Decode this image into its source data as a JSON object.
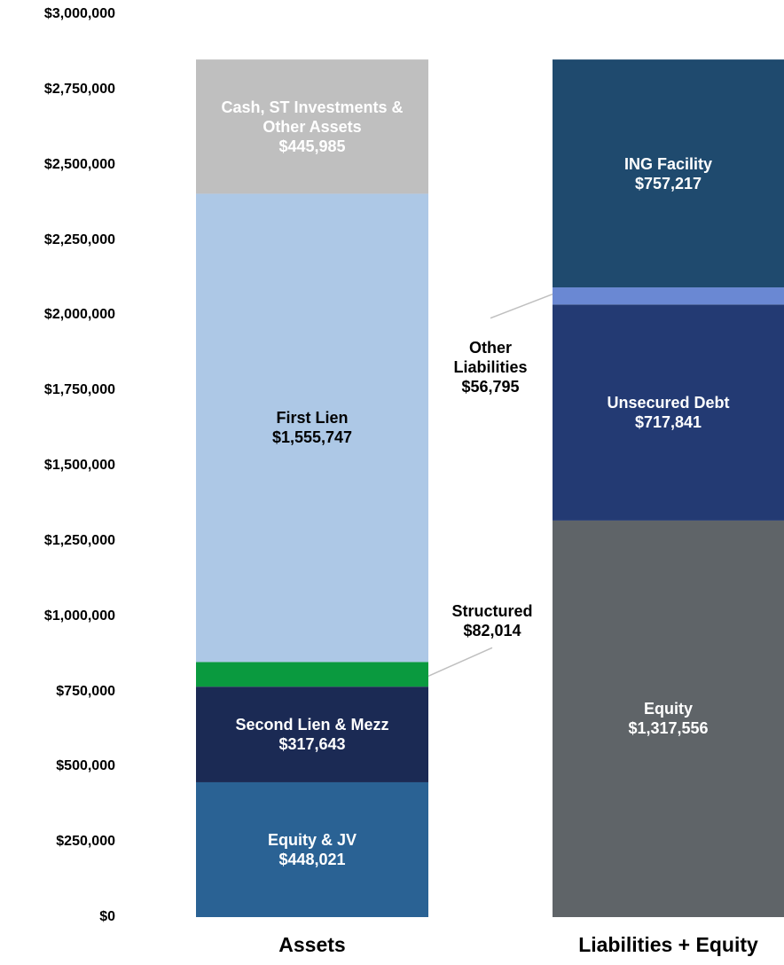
{
  "chart_data": {
    "type": "stacked_bar",
    "categories": [
      "Assets",
      "Liabilities + Equity"
    ],
    "ylim": [
      0,
      3000000
    ],
    "yticks": [
      {
        "value": 0,
        "label": "$0"
      },
      {
        "value": 250000,
        "label": "$250,000"
      },
      {
        "value": 500000,
        "label": "$500,000"
      },
      {
        "value": 750000,
        "label": "$750,000"
      },
      {
        "value": 1000000,
        "label": "$1,000,000"
      },
      {
        "value": 1250000,
        "label": "$1,250,000"
      },
      {
        "value": 1500000,
        "label": "$1,500,000"
      },
      {
        "value": 1750000,
        "label": "$1,750,000"
      },
      {
        "value": 2000000,
        "label": "$2,000,000"
      },
      {
        "value": 2250000,
        "label": "$2,250,000"
      },
      {
        "value": 2500000,
        "label": "$2,500,000"
      },
      {
        "value": 2750000,
        "label": "$2,750,000"
      },
      {
        "value": 3000000,
        "label": "$3,000,000"
      }
    ],
    "series": [
      {
        "name": "Equity & JV",
        "color": "#2a6294",
        "label_color": "#ffffff",
        "values": [
          448021,
          null
        ],
        "value_labels": [
          "$448,021",
          null
        ]
      },
      {
        "name": "Second Lien & Mezz",
        "color": "#1b2a54",
        "label_color": "#ffffff",
        "values": [
          317643,
          null
        ],
        "value_labels": [
          "$317,643",
          null
        ]
      },
      {
        "name": "Structured",
        "color": "#0a9a3f",
        "label_color": "#000000",
        "values": [
          82014,
          null
        ],
        "value_labels": [
          "$82,014",
          null
        ]
      },
      {
        "name": "First Lien",
        "color": "#adc8e6",
        "label_color": "#000000",
        "values": [
          1555747,
          null
        ],
        "value_labels": [
          "$1,555,747",
          null
        ]
      },
      {
        "name": "Cash, ST Investments & Other Assets",
        "color": "#bfbfbf",
        "label_color": "#ffffff",
        "values": [
          445985,
          null
        ],
        "value_labels": [
          "$445,985",
          null
        ]
      },
      {
        "name": "Equity",
        "color": "#5f6468",
        "label_color": "#ffffff",
        "values": [
          null,
          1317556
        ],
        "value_labels": [
          null,
          "$1,317,556"
        ]
      },
      {
        "name": "Unsecured Debt",
        "color": "#233a73",
        "label_color": "#ffffff",
        "values": [
          null,
          717841
        ],
        "value_labels": [
          null,
          "$717,841"
        ]
      },
      {
        "name": "Other Liabilities",
        "color": "#6a88d3",
        "label_color": "#000000",
        "values": [
          null,
          56795
        ],
        "value_labels": [
          null,
          "$56,795"
        ]
      },
      {
        "name": "ING Facility",
        "color": "#1f4a6e",
        "label_color": "#ffffff",
        "values": [
          null,
          757217
        ],
        "value_labels": [
          null,
          "$757,217"
        ]
      }
    ]
  }
}
